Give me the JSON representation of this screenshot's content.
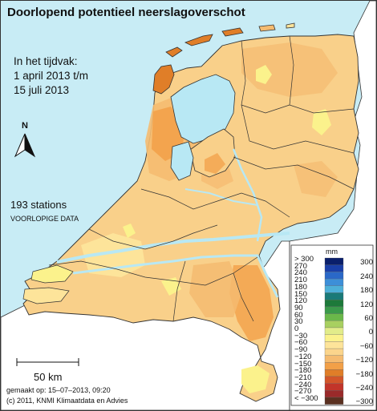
{
  "title": "Doorlopend potentieel neerslagoverschot",
  "period": {
    "line1": "In het tijdvak:",
    "line2": "1 april 2013 t/m",
    "line3": "15 juli 2013"
  },
  "stations": "193 stations",
  "preliminary": "VOORLOPIGE DATA",
  "north_label": "N",
  "north_icon": "north-arrow-icon",
  "scale_label": "50 km",
  "made_on": "gemaakt op: 15–07–2013, 09:20",
  "copyright": "(c) 2011, KNMI Klimaatdata en Advies",
  "legend": {
    "unit": "mm",
    "left_labels": [
      "> 300",
      "270",
      "240",
      "210",
      "180",
      "150",
      "120",
      "90",
      "60",
      "30",
      "0",
      "−30",
      "−60",
      "−90",
      "−120",
      "−150",
      "−180",
      "−210",
      "−240",
      "−270",
      "< −300"
    ],
    "right_labels": [
      "300",
      "240",
      "180",
      "120",
      "60",
      "0",
      "−60",
      "−120",
      "−180",
      "−240",
      "−300"
    ],
    "colors": [
      "#0a1f6b",
      "#1a3fa8",
      "#2a68c8",
      "#3d8fd8",
      "#4eb0d8",
      "#1a7a78",
      "#1d7a3a",
      "#3a9a4a",
      "#6ab84a",
      "#a8d060",
      "#e2ec8a",
      "#fbf28c",
      "#fde49a",
      "#fbd58c",
      "#f5bb70",
      "#f2a048",
      "#e07e28",
      "#d3562a",
      "#c2352a",
      "#9a2a2a",
      "#5a3020"
    ]
  },
  "colors": {
    "sea": "#c8ecf5",
    "land_base": "#f9d08a",
    "water": "#b8e8f4"
  }
}
